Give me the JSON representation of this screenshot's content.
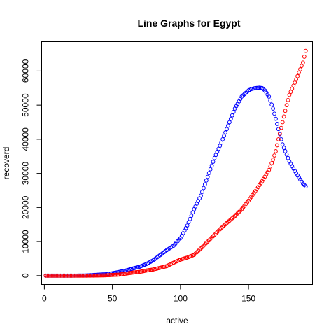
{
  "chart_data": {
    "type": "scatter",
    "title": "Line Graphs for Egypt",
    "xlabel": "active",
    "ylabel": "recoverd",
    "xlim": [
      -2,
      197
    ],
    "ylim": [
      -2600,
      68600
    ],
    "x_ticks": [
      0,
      50,
      100,
      150
    ],
    "y_ticks": [
      0,
      10000,
      20000,
      30000,
      40000,
      50000,
      60000
    ],
    "grid": false,
    "series": [
      {
        "color": "#0000ff",
        "x": [
          1,
          10,
          20,
          30,
          35,
          40,
          45,
          50,
          55,
          60,
          65,
          70,
          75,
          80,
          85,
          90,
          95,
          100,
          105,
          110,
          115,
          120,
          125,
          130,
          135,
          140,
          145,
          150,
          152,
          155,
          158,
          160,
          162,
          165,
          168,
          170,
          172,
          175,
          178,
          180,
          185,
          190,
          192
        ],
        "y": [
          0,
          0,
          0,
          50,
          150,
          300,
          400,
          700,
          1100,
          1500,
          2100,
          2600,
          3400,
          4500,
          6000,
          7500,
          8800,
          11000,
          14700,
          19500,
          23500,
          29000,
          34500,
          39000,
          44000,
          49000,
          52500,
          54300,
          54700,
          55000,
          55100,
          55000,
          54300,
          52500,
          49000,
          46000,
          43000,
          38500,
          35500,
          33500,
          30000,
          27000,
          26200
        ]
      },
      {
        "color": "#ff0000",
        "x": [
          1,
          10,
          20,
          30,
          40,
          45,
          50,
          55,
          60,
          65,
          70,
          75,
          80,
          85,
          90,
          95,
          100,
          105,
          110,
          115,
          120,
          125,
          130,
          135,
          140,
          145,
          150,
          155,
          160,
          165,
          168,
          170,
          172,
          175,
          178,
          180,
          185,
          190,
          192
        ],
        "y": [
          0,
          0,
          0,
          0,
          50,
          100,
          200,
          300,
          600,
          900,
          1100,
          1500,
          1800,
          2300,
          2800,
          3800,
          4700,
          5300,
          6100,
          8000,
          10000,
          12000,
          14000,
          15800,
          17500,
          19500,
          22000,
          24800,
          27700,
          31000,
          34000,
          36500,
          40000,
          45000,
          50000,
          53000,
          57500,
          62500,
          65900
        ]
      }
    ]
  }
}
